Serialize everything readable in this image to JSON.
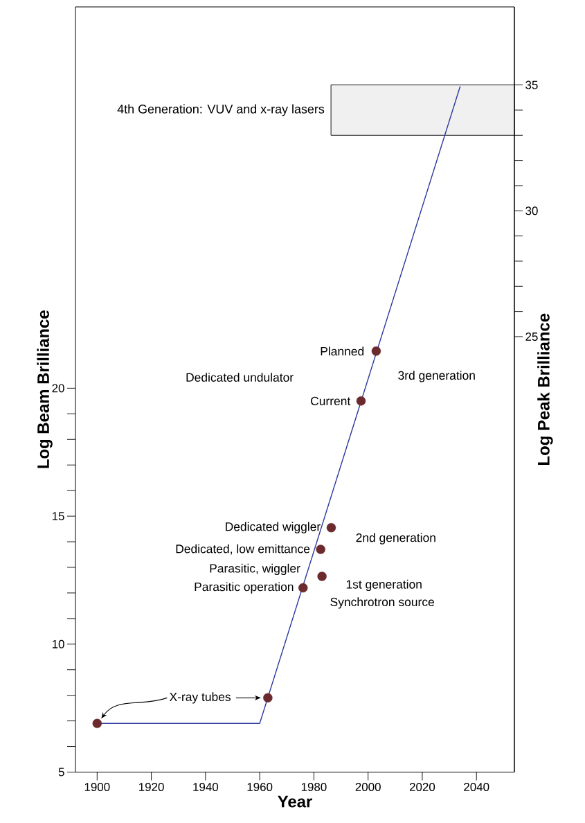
{
  "chart_data": {
    "type": "line",
    "xlabel": "Year",
    "ylabel": "Log Beam Brilliance",
    "y2label": "Log Peak Brilliance",
    "xlim": [
      1892,
      2054
    ],
    "ylim": [
      5,
      34.9
    ],
    "y2lim": [
      7.7,
      38.1
    ],
    "xticks": [
      1900,
      1920,
      1940,
      1960,
      1980,
      2000,
      2020,
      2040
    ],
    "yticks": [
      5,
      {
        "value": 6,
        "label": null
      },
      {
        "value": 7,
        "label": null
      },
      {
        "value": 8,
        "label": null
      },
      {
        "value": 9,
        "label": null
      },
      10,
      {
        "value": 11,
        "label": null
      },
      {
        "value": 12,
        "label": null
      },
      {
        "value": 13,
        "label": null
      },
      {
        "value": 14,
        "label": null
      },
      15,
      {
        "value": 16,
        "label": null
      },
      {
        "value": 17,
        "label": null
      },
      {
        "value": 18,
        "label": null
      },
      {
        "value": 19,
        "label": null
      },
      20
    ],
    "y2ticks": [
      25,
      {
        "value": 26,
        "label": null
      },
      {
        "value": 27,
        "label": null
      },
      {
        "value": 28,
        "label": null
      },
      {
        "value": 29,
        "label": null
      },
      30,
      {
        "value": 31,
        "label": null
      },
      {
        "value": 32,
        "label": null
      },
      {
        "value": 33,
        "label": null
      },
      {
        "value": 34,
        "label": null
      },
      35
    ],
    "series": [
      {
        "color": "#2b3a9e",
        "marker": "none",
        "x": [
          1900,
          1960,
          2034
        ],
        "values": [
          6.9,
          6.9,
          31.8
        ]
      },
      {
        "type": "scatter",
        "color": "#6b2a2e",
        "marker": "circle",
        "x": [
          1900,
          1963,
          1976,
          1983,
          1982.5,
          1986.4,
          1997.4,
          2003
        ],
        "values": [
          6.9,
          7.9,
          12.2,
          12.65,
          13.7,
          14.55,
          19.5,
          21.45
        ]
      }
    ],
    "bands": [
      {
        "axis": "y2",
        "from": 33,
        "to": 35,
        "label": "4th Generation: VUV and x-ray lasers",
        "color": "#f0f0f0"
      }
    ],
    "annotations": [
      "X-ray tubes",
      {
        "text": "Parasitic operation",
        "x": 1976,
        "y": 12.2
      },
      {
        "text": "Parasitic, wiggler",
        "x": 1983,
        "y": 12.65
      },
      {
        "text": "Dedicated, low emittance",
        "x": 1982.5,
        "y": 13.7
      },
      {
        "text": "Dedicated wiggler",
        "x": 1986.4,
        "y": 14.55
      },
      {
        "text": "Current",
        "x": 1997.4,
        "y": 19.5
      },
      {
        "text": "Planned",
        "x": 2003,
        "y": 21.45
      },
      "Dedicated undulator",
      "3rd generation",
      "2nd generation",
      "1st generation",
      "Synchrotron source"
    ],
    "grid": false
  }
}
